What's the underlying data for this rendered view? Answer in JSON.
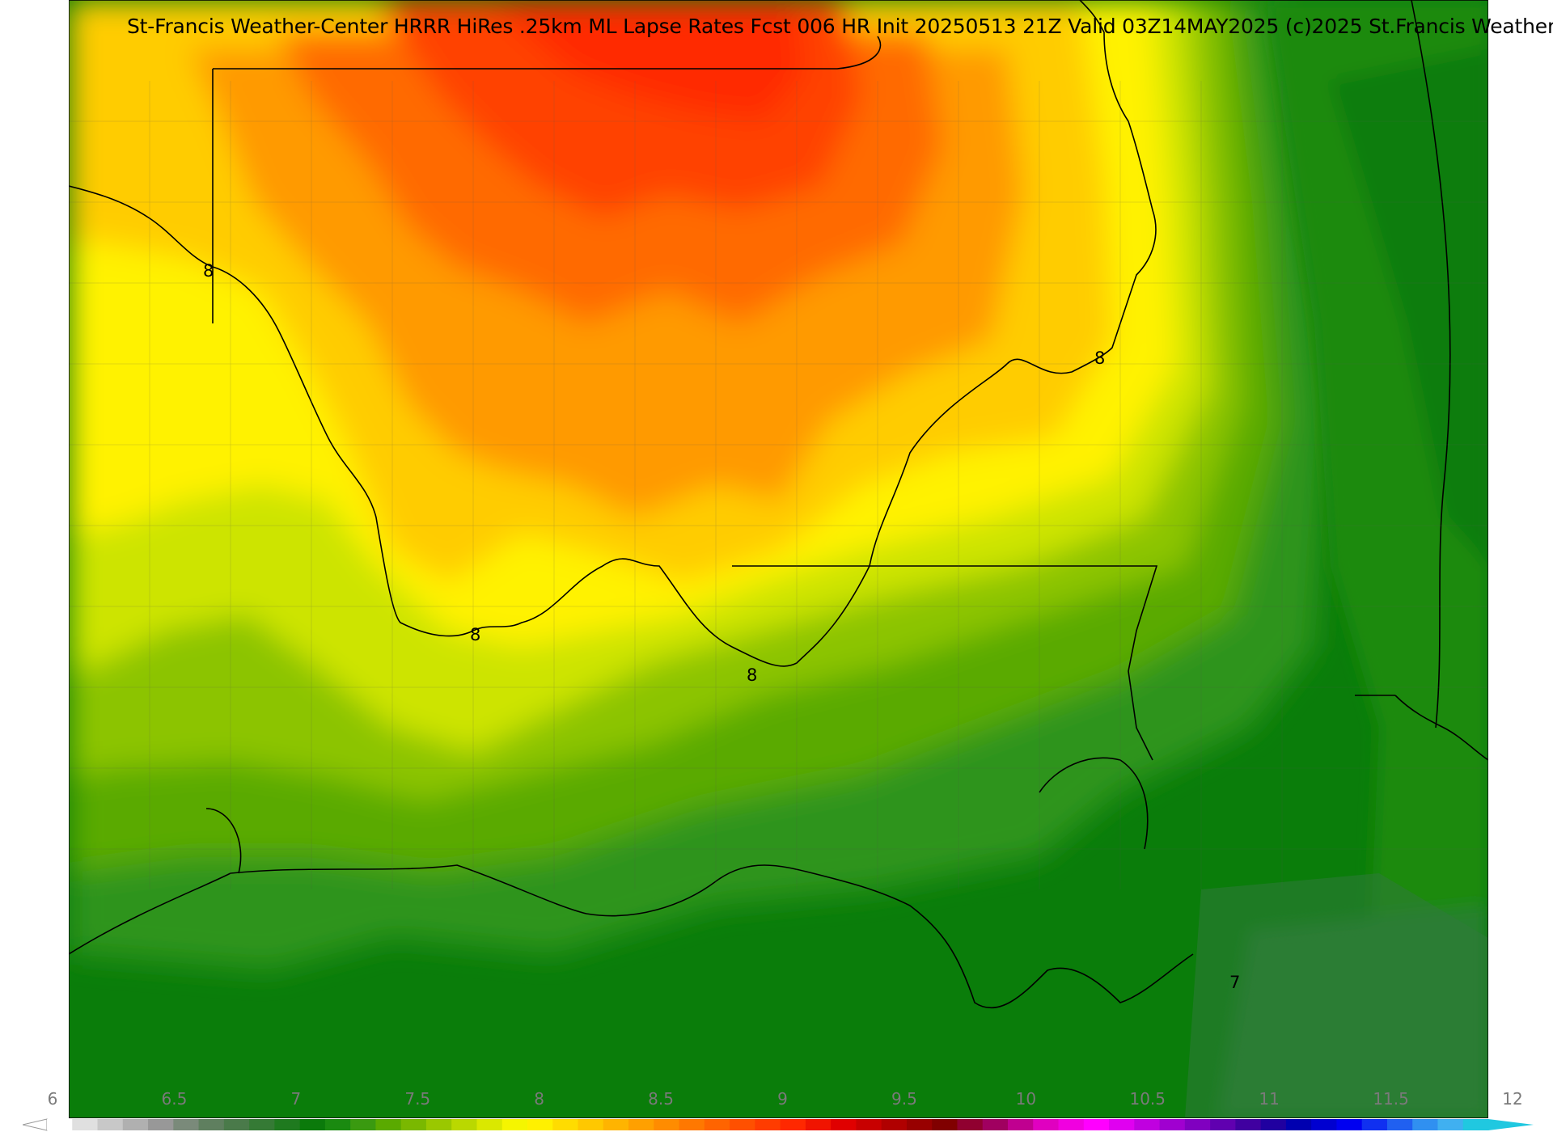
{
  "title": "St-Francis Weather-Center HRRR HiRes .25km ML Lapse Rates  Fcst 006 HR Init 20250513 21Z  Valid 03Z14MAY2025    (c)2025 St.Francis Weather",
  "contour_labels": [
    "8",
    "8",
    "8",
    "8",
    "7"
  ],
  "colorbar": {
    "min": 6,
    "max": 12,
    "tick_labels": [
      "6",
      "6.5",
      "7",
      "7.5",
      "8",
      "8.5",
      "9",
      "9.5",
      "10",
      "10.5",
      "11",
      "11.5",
      "12"
    ],
    "colors": [
      "#ffffff",
      "#e0e0e0",
      "#c8c8c8",
      "#b0b0b0",
      "#989898",
      "#7a8a7a",
      "#5f7f5f",
      "#4a7a4a",
      "#357a35",
      "#1f7a1f",
      "#0b7a0b",
      "#1a8a10",
      "#3a9a10",
      "#5aaa00",
      "#7ab800",
      "#9ac800",
      "#bad800",
      "#dae800",
      "#f5f500",
      "#fff000",
      "#ffdc00",
      "#ffc800",
      "#ffb400",
      "#ffa000",
      "#ff8c00",
      "#ff7800",
      "#ff6400",
      "#ff5000",
      "#ff3c00",
      "#ff2800",
      "#f01400",
      "#e00000",
      "#c80000",
      "#b00000",
      "#980000",
      "#800000",
      "#900030",
      "#a00060",
      "#c00090",
      "#e000c0",
      "#f000e0",
      "#ff00ff",
      "#e000f0",
      "#c000e0",
      "#a000d0",
      "#8000c0",
      "#6000b0",
      "#4000a0",
      "#2000a0",
      "#0000b0",
      "#0000d0",
      "#0000f0",
      "#1030f0",
      "#2060f0",
      "#3090f0",
      "#40b0f0",
      "#20c8e0"
    ]
  },
  "palette": {
    "deep_green": "#0a7d0a",
    "green": "#3c9c14",
    "light_green": "#8cc400",
    "yellow_green": "#cde400",
    "yellow": "#fff200",
    "gold": "#ffcc00",
    "orange": "#ff9a00",
    "red_orange": "#ff5a00",
    "red": "#ff2800",
    "border": "#000000"
  }
}
